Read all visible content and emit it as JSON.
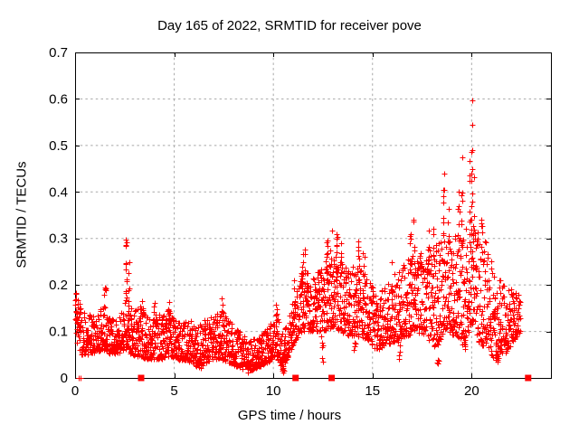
{
  "chart_data": {
    "type": "scatter",
    "title": "Day 165 of 2022, SRMTID for receiver pove",
    "xlabel": "GPS time / hours",
    "ylabel": "SRMTID / TECUs",
    "xlim": [
      0,
      24
    ],
    "ylim": [
      0,
      0.7
    ],
    "xticks": [
      0,
      5,
      10,
      15,
      20
    ],
    "xtick_labels": [
      "0",
      "5",
      "10",
      "15",
      "20"
    ],
    "yticks": [
      0,
      0.1,
      0.2,
      0.3,
      0.4,
      0.5,
      0.6,
      0.7
    ],
    "ytick_labels": [
      "0",
      "0.1",
      "0.2",
      "0.3",
      "0.4",
      "0.5",
      "0.6",
      "0.7"
    ],
    "grid": true,
    "grid_style": "dashed",
    "legend": "none",
    "marker": "plus",
    "marker_size": 7,
    "colors": {
      "marker": "#ff0000",
      "axis": "#000000",
      "grid": "#a8a8a8",
      "background": "#ffffff",
      "text": "#000000"
    },
    "series_name": "SRMTID",
    "t_range": [
      0.02,
      22.45
    ],
    "points_per_hour": 120,
    "skew": 1.5,
    "seed": 20220165,
    "envelope": [
      [
        0.0,
        0.09,
        0.19
      ],
      [
        0.25,
        0.05,
        0.16
      ],
      [
        0.6,
        0.05,
        0.14
      ],
      [
        1.0,
        0.055,
        0.13
      ],
      [
        1.45,
        0.06,
        0.16
      ],
      [
        1.8,
        0.05,
        0.13
      ],
      [
        2.2,
        0.055,
        0.14
      ],
      [
        2.55,
        0.06,
        0.17
      ],
      [
        2.85,
        0.05,
        0.15
      ],
      [
        3.3,
        0.045,
        0.16
      ],
      [
        3.8,
        0.04,
        0.125
      ],
      [
        4.2,
        0.04,
        0.14
      ],
      [
        4.8,
        0.045,
        0.15
      ],
      [
        5.2,
        0.04,
        0.12
      ],
      [
        5.8,
        0.035,
        0.125
      ],
      [
        6.3,
        0.02,
        0.115
      ],
      [
        6.8,
        0.04,
        0.13
      ],
      [
        7.4,
        0.04,
        0.145
      ],
      [
        7.9,
        0.03,
        0.115
      ],
      [
        8.4,
        0.02,
        0.095
      ],
      [
        8.8,
        0.015,
        0.08
      ],
      [
        9.3,
        0.025,
        0.09
      ],
      [
        9.8,
        0.035,
        0.115
      ],
      [
        10.1,
        0.05,
        0.15
      ],
      [
        10.5,
        0.015,
        0.095
      ],
      [
        10.8,
        0.055,
        0.14
      ],
      [
        11.1,
        0.08,
        0.18
      ],
      [
        11.5,
        0.1,
        0.24
      ],
      [
        12.0,
        0.1,
        0.22
      ],
      [
        12.5,
        0.1,
        0.25
      ],
      [
        13.0,
        0.11,
        0.27
      ],
      [
        13.4,
        0.1,
        0.26
      ],
      [
        13.8,
        0.09,
        0.235
      ],
      [
        14.3,
        0.09,
        0.25
      ],
      [
        14.8,
        0.08,
        0.215
      ],
      [
        15.2,
        0.06,
        0.18
      ],
      [
        15.7,
        0.07,
        0.2
      ],
      [
        16.2,
        0.08,
        0.23
      ],
      [
        16.7,
        0.09,
        0.25
      ],
      [
        17.2,
        0.1,
        0.27
      ],
      [
        17.7,
        0.09,
        0.28
      ],
      [
        18.2,
        0.065,
        0.29
      ],
      [
        18.7,
        0.1,
        0.32
      ],
      [
        19.2,
        0.09,
        0.31
      ],
      [
        19.6,
        0.065,
        0.32
      ],
      [
        20.0,
        0.12,
        0.36
      ],
      [
        20.4,
        0.07,
        0.33
      ],
      [
        20.8,
        0.07,
        0.29
      ],
      [
        21.2,
        0.03,
        0.21
      ],
      [
        21.6,
        0.05,
        0.21
      ],
      [
        22.0,
        0.07,
        0.2
      ],
      [
        22.45,
        0.1,
        0.185
      ]
    ],
    "spikes": [
      [
        0.05,
        0.12,
        0.19,
        6
      ],
      [
        1.5,
        0.15,
        0.21,
        5
      ],
      [
        2.55,
        0.15,
        0.3,
        12
      ],
      [
        2.7,
        0.14,
        0.25,
        7
      ],
      [
        3.4,
        0.12,
        0.17,
        5
      ],
      [
        4.0,
        0.11,
        0.165,
        6
      ],
      [
        4.75,
        0.11,
        0.165,
        6
      ],
      [
        6.5,
        0.1,
        0.14,
        4
      ],
      [
        7.4,
        0.11,
        0.18,
        6
      ],
      [
        10.15,
        0.11,
        0.17,
        6
      ],
      [
        11.0,
        0.14,
        0.21,
        5
      ],
      [
        11.45,
        0.17,
        0.31,
        10
      ],
      [
        11.6,
        0.16,
        0.28,
        6
      ],
      [
        12.15,
        0.17,
        0.26,
        6
      ],
      [
        12.7,
        0.19,
        0.31,
        8
      ],
      [
        12.9,
        0.19,
        0.33,
        6
      ],
      [
        13.2,
        0.21,
        0.36,
        9
      ],
      [
        13.4,
        0.19,
        0.3,
        6
      ],
      [
        14.3,
        0.18,
        0.3,
        7
      ],
      [
        14.55,
        0.17,
        0.27,
        5
      ],
      [
        16.0,
        0.17,
        0.25,
        5
      ],
      [
        16.9,
        0.19,
        0.32,
        7
      ],
      [
        17.1,
        0.21,
        0.38,
        7
      ],
      [
        17.8,
        0.2,
        0.35,
        7
      ],
      [
        18.05,
        0.19,
        0.33,
        6
      ],
      [
        18.6,
        0.24,
        0.45,
        9
      ],
      [
        18.85,
        0.26,
        0.38,
        6
      ],
      [
        19.35,
        0.24,
        0.43,
        8
      ],
      [
        19.5,
        0.28,
        0.49,
        7
      ],
      [
        19.9,
        0.28,
        0.47,
        7
      ],
      [
        20.0,
        0.33,
        0.601,
        13
      ],
      [
        20.1,
        0.28,
        0.45,
        6
      ],
      [
        20.5,
        0.24,
        0.35,
        5
      ],
      [
        8.7,
        0.012,
        0.05,
        7
      ],
      [
        10.5,
        0.012,
        0.06,
        7
      ],
      [
        12.45,
        0.03,
        0.09,
        6
      ],
      [
        14.1,
        0.05,
        0.09,
        4
      ],
      [
        16.35,
        0.04,
        0.09,
        5
      ],
      [
        18.3,
        0.03,
        0.1,
        6
      ],
      [
        19.65,
        0.05,
        0.09,
        5
      ],
      [
        21.3,
        0.03,
        0.08,
        8
      ]
    ],
    "near_zero_point_hours": [
      0.16,
      0.27
    ],
    "gap_marker_hours": [
      3.33,
      11.12,
      12.94,
      22.85
    ],
    "gap_marker_shape": "filled-square",
    "y_max_observed": 0.601,
    "y_max_observed_hour": 20.0
  }
}
